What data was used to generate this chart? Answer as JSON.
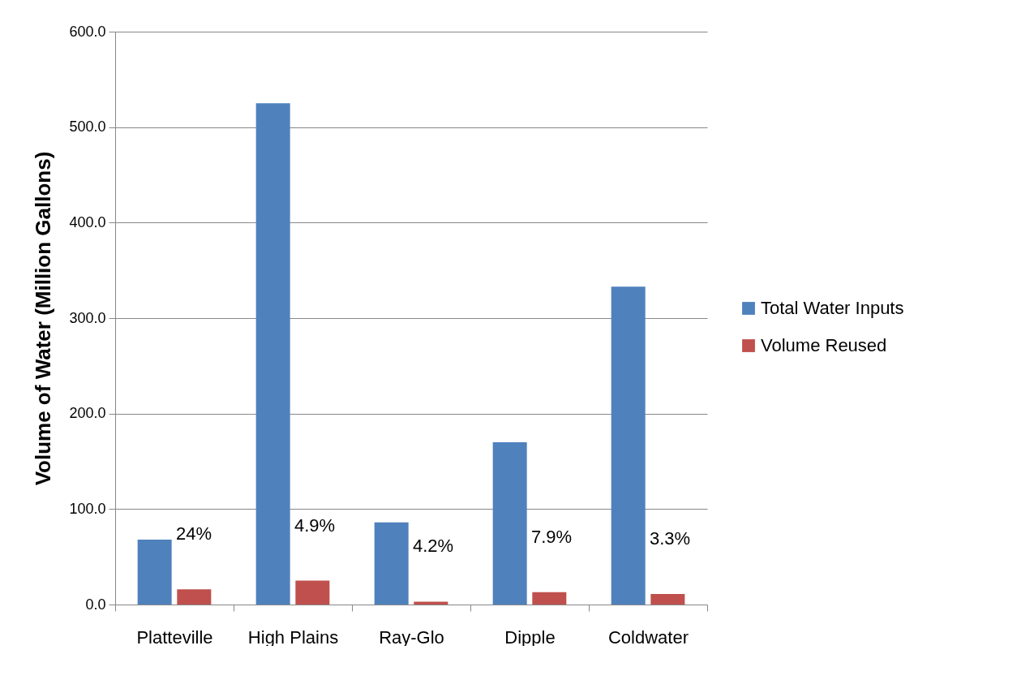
{
  "chart_data": {
    "type": "bar",
    "ylabel": "Volume of Water (Million Gallons)",
    "categories": [
      "Platteville",
      "High Plains",
      "Ray-Glo",
      "Dipple",
      "Coldwater"
    ],
    "series": [
      {
        "name": "Total Water Inputs",
        "color": "#4f81bd",
        "values": [
          68,
          525,
          86,
          170,
          333
        ]
      },
      {
        "name": "Volume Reused",
        "color": "#c0504d",
        "values": [
          16,
          25,
          3,
          13,
          11
        ]
      }
    ],
    "ylim": [
      0,
      600
    ],
    "yticks": [
      {
        "value": 0,
        "label": "0.0"
      },
      {
        "value": 100,
        "label": "100.0"
      },
      {
        "value": 200,
        "label": "200.0"
      },
      {
        "value": 300,
        "label": "300.0"
      },
      {
        "value": 400,
        "label": "400.0"
      },
      {
        "value": 500,
        "label": "500.0"
      },
      {
        "value": 600,
        "label": "600.0"
      }
    ],
    "grid": "y",
    "legend": "right",
    "annotations": [
      {
        "text": "24%",
        "x": "Platteville",
        "y": 16
      },
      {
        "text": "4.9%",
        "x": "High Plains",
        "y": 25
      },
      {
        "text": "4.2%",
        "x": "Ray-Glo",
        "y": 3
      },
      {
        "text": "7.9%",
        "x": "Dipple",
        "y": 13
      },
      {
        "text": "3.3%",
        "x": "Coldwater",
        "y": 11
      }
    ]
  }
}
